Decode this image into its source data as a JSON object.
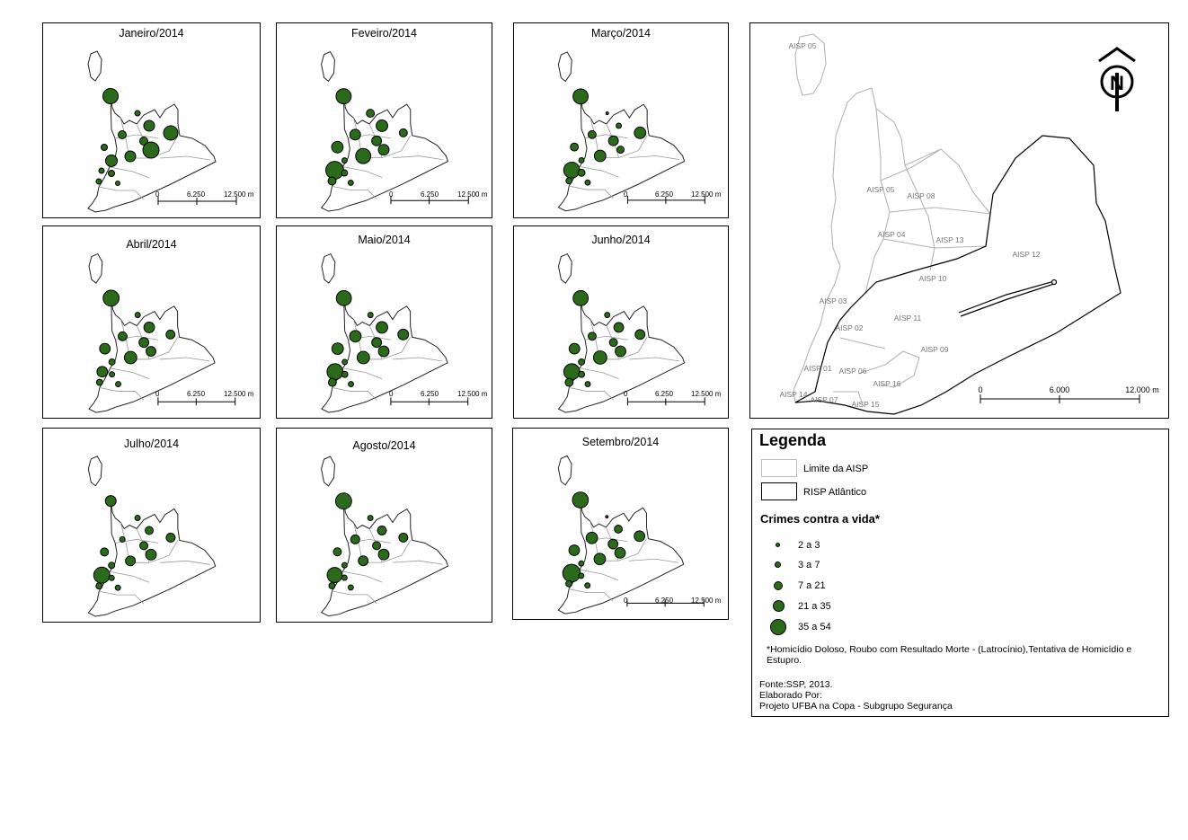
{
  "months": [
    {
      "title": "Janeiro/2014",
      "dots": [
        17,
        6,
        9,
        12,
        16,
        9,
        12,
        18,
        13,
        7,
        6,
        7,
        6,
        5
      ]
    },
    {
      "title": "Feveiro/2014",
      "dots": [
        17,
        9,
        12,
        13,
        9,
        11,
        17,
        12,
        6,
        13,
        20,
        7,
        9,
        6
      ]
    },
    {
      "title": "Março/2014",
      "dots": [
        17,
        3,
        9,
        6,
        13,
        11,
        13,
        8,
        6,
        9,
        18,
        8,
        7,
        6
      ]
    },
    {
      "title": "Abril/2014",
      "dots": [
        18,
        6,
        10,
        12,
        10,
        11,
        14,
        11,
        7,
        12,
        12,
        6,
        7,
        6
      ]
    },
    {
      "title": "Maio/2014",
      "dots": [
        17,
        6,
        13,
        13,
        12,
        11,
        14,
        12,
        6,
        13,
        18,
        7,
        9,
        6
      ]
    },
    {
      "title": "Junho/2014",
      "dots": [
        17,
        6,
        9,
        11,
        11,
        9,
        15,
        12,
        7,
        12,
        18,
        7,
        9,
        6
      ]
    },
    {
      "title": "Julho/2014",
      "dots": [
        12,
        6,
        6,
        9,
        10,
        9,
        11,
        12,
        7,
        9,
        18,
        6,
        7,
        6
      ]
    },
    {
      "title": "Agosto/2014",
      "dots": [
        18,
        6,
        10,
        10,
        10,
        9,
        11,
        12,
        6,
        9,
        17,
        6,
        7,
        6
      ]
    },
    {
      "title": "Setembro/2014",
      "dots": [
        18,
        3,
        13,
        9,
        12,
        11,
        13,
        12,
        6,
        12,
        20,
        6,
        7,
        6
      ]
    }
  ],
  "small_scale": {
    "ticks": [
      "0",
      "6.250",
      "12.500 m"
    ]
  },
  "overview": {
    "north_label": "N",
    "scale_ticks": [
      "0",
      "6.000",
      "12.000 m"
    ],
    "regions": [
      "AISP 05",
      "AISP 05",
      "AISP 08",
      "AISP 04",
      "AISP 13",
      "AISP 12",
      "AISP 10",
      "AISP 03",
      "AISP 11",
      "AISP 02",
      "AISP 09",
      "AISP 01",
      "AISP 06",
      "AISP 16",
      "AISP 14",
      "AISP 07",
      "AISP 15"
    ]
  },
  "legend": {
    "title": "Legenda",
    "limite_label": "Limite da AISP",
    "risp_label": "RISP Atlântico",
    "crimes_title": "Crimes contra a vida*",
    "classes": [
      "2 a 3",
      "3 a 7",
      "7 a 21",
      "21 a 35",
      "35 a 54"
    ],
    "note": "*Homicídio Doloso, Roubo com Resultado Morte - (Latrocínio),Tentativa de  Homicídio e Estupro.",
    "fonte": "Fonte:SSP, 2013.",
    "elaborado": "Elaborado Por:",
    "projeto": "Projeto UFBA  na Copa - Subgrupo Segurança"
  },
  "colors": {
    "dot_fill": "#2a6a1a",
    "dot_stroke": "#000000",
    "aisp_line": "#b5b5b5",
    "risp_line": "#000000"
  }
}
